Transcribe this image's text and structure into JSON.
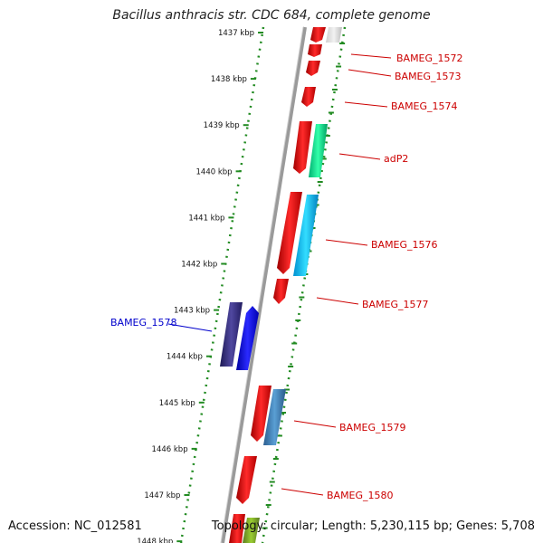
{
  "title": "Bacillus anthracis str. CDC 684, complete genome",
  "accession": "Accession: NC_012581",
  "topology": "Topology: circular; Length: 5,230,115 bp; Genes: 5,708",
  "ticks": [
    "1437 kbp",
    "1438 kbp",
    "1439 kbp",
    "1440 kbp",
    "1441 kbp",
    "1442 kbp",
    "1443 kbp",
    "1444 kbp",
    "1445 kbp",
    "1446 kbp",
    "1447 kbp",
    "1448 kbp"
  ],
  "gene_labels": {
    "BAMEG_1572": "BAMEG_1572",
    "BAMEG_1573": "BAMEG_1573",
    "BAMEG_1574": "BAMEG_1574",
    "adP2": "adP2",
    "BAMEG_1576": "BAMEG_1576",
    "BAMEG_1577": "BAMEG_1577",
    "BAMEG_1578": "BAMEG_1578",
    "BAMEG_1579": "BAMEG_1579",
    "BAMEG_1580": "BAMEG_1580"
  },
  "colors": {
    "forward_gene": "#ff0000",
    "reverse_gene": "#0000ff",
    "label_forward": "#cc0000",
    "label_reverse": "#0000cc",
    "tick_green": "#228b22",
    "backbone": "#808080"
  }
}
